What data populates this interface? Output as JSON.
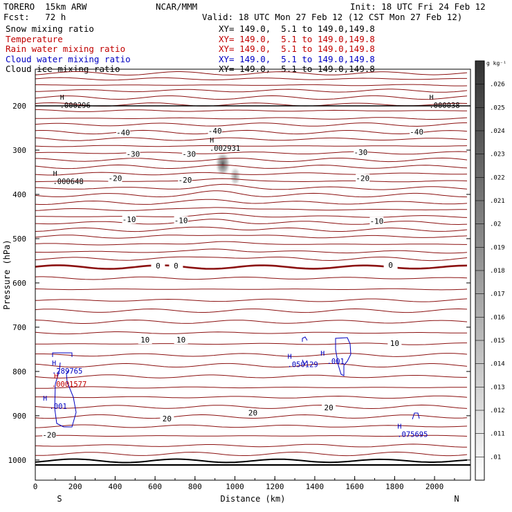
{
  "header": {
    "model": "TORERO  15km ARW",
    "org": "NCAR/MMM",
    "init": "Init: 18 UTC Fri 24 Feb 12",
    "fcst": "Fcst:   72 h",
    "valid": "Valid: 18 UTC Mon 27 Feb 12 (12 CST Mon 27 Feb 12)"
  },
  "legend": [
    {
      "name": "Snow mixing ratio",
      "xy": "XY= 149.0,  5.1 to 149.0,149.8",
      "color": "#000000"
    },
    {
      "name": "Temperature",
      "xy": "XY= 149.0,  5.1 to 149.0,149.8",
      "color": "#c00000"
    },
    {
      "name": "Rain water mixing ratio",
      "xy": "XY= 149.0,  5.1 to 149.0,149.8",
      "color": "#c00000"
    },
    {
      "name": "Cloud water mixing ratio",
      "xy": "XY= 149.0,  5.1 to 149.0,149.8",
      "color": "#0000c0"
    },
    {
      "name": "Cloud ice mixing ratio",
      "xy": "XY= 149.0,  5.1 to 149.0,149.8",
      "color": "#000000"
    }
  ],
  "chart_data": {
    "type": "line",
    "xlabel": "Distance (km)",
    "ylabel": "Pressure (hPa)",
    "xlim": [
      0,
      2180
    ],
    "ylim": [
      1050,
      100
    ],
    "x_ticks": [
      0,
      200,
      400,
      600,
      800,
      1000,
      1200,
      1400,
      1600,
      1800,
      2000
    ],
    "y_ticks": [
      200,
      300,
      400,
      500,
      600,
      700,
      800,
      900,
      1000
    ],
    "direction_labels": {
      "left": "S",
      "right": "N"
    },
    "temperature_contour_labels": [
      {
        "text": "-40",
        "x": 440,
        "p": 262
      },
      {
        "text": "-40",
        "x": 900,
        "p": 258
      },
      {
        "text": "-40",
        "x": 1910,
        "p": 260
      },
      {
        "text": "-30",
        "x": 490,
        "p": 310
      },
      {
        "text": "-30",
        "x": 770,
        "p": 310
      },
      {
        "text": "-30",
        "x": 1630,
        "p": 306
      },
      {
        "text": "-20",
        "x": 400,
        "p": 365
      },
      {
        "text": "-20",
        "x": 750,
        "p": 369
      },
      {
        "text": "-20",
        "x": 1640,
        "p": 365
      },
      {
        "text": "-10",
        "x": 470,
        "p": 458
      },
      {
        "text": "-10",
        "x": 730,
        "p": 460
      },
      {
        "text": "-10",
        "x": 1710,
        "p": 462
      },
      {
        "text": "0",
        "x": 615,
        "p": 563
      },
      {
        "text": "0",
        "x": 705,
        "p": 563
      },
      {
        "text": "0",
        "x": 1780,
        "p": 561
      },
      {
        "text": "10",
        "x": 550,
        "p": 730
      },
      {
        "text": "10",
        "x": 730,
        "p": 730
      },
      {
        "text": "10",
        "x": 1800,
        "p": 738
      },
      {
        "text": "20",
        "x": 660,
        "p": 908
      },
      {
        "text": "20",
        "x": 1090,
        "p": 895
      },
      {
        "text": "20",
        "x": 1470,
        "p": 883
      },
      {
        "text": "-20",
        "x": 70,
        "p": 945
      }
    ],
    "maxima_labels": [
      {
        "text": ".000296",
        "x": 200,
        "p": 200,
        "color": "#000000"
      },
      {
        "text": ".000038",
        "x": 2050,
        "p": 200,
        "color": "#000000"
      },
      {
        "text": ".002931",
        "x": 950,
        "p": 297,
        "color": "#000000"
      },
      {
        "text": ".000648",
        "x": 165,
        "p": 372,
        "color": "#000000"
      },
      {
        "text": ".289765",
        "x": 160,
        "p": 800,
        "color": "#0000c0"
      },
      {
        "text": ".0001577",
        "x": 170,
        "p": 830,
        "color": "#c00000"
      },
      {
        "text": ".001",
        "x": 115,
        "p": 880,
        "color": "#0000c0"
      },
      {
        "text": ".050129",
        "x": 1340,
        "p": 785,
        "color": "#0000c0"
      },
      {
        "text": ".001",
        "x": 1505,
        "p": 778,
        "color": "#0000c0"
      },
      {
        "text": ".075695",
        "x": 1890,
        "p": 943,
        "color": "#0000c0"
      }
    ],
    "colorbar": {
      "unit": "g kg⁻¹",
      "ticks": [
        ".026",
        ".025",
        ".024",
        ".023",
        ".022",
        ".021",
        ".02",
        ".019",
        ".018",
        ".017",
        ".016",
        ".015",
        ".014",
        ".013",
        ".012",
        ".011",
        ".01"
      ]
    }
  }
}
